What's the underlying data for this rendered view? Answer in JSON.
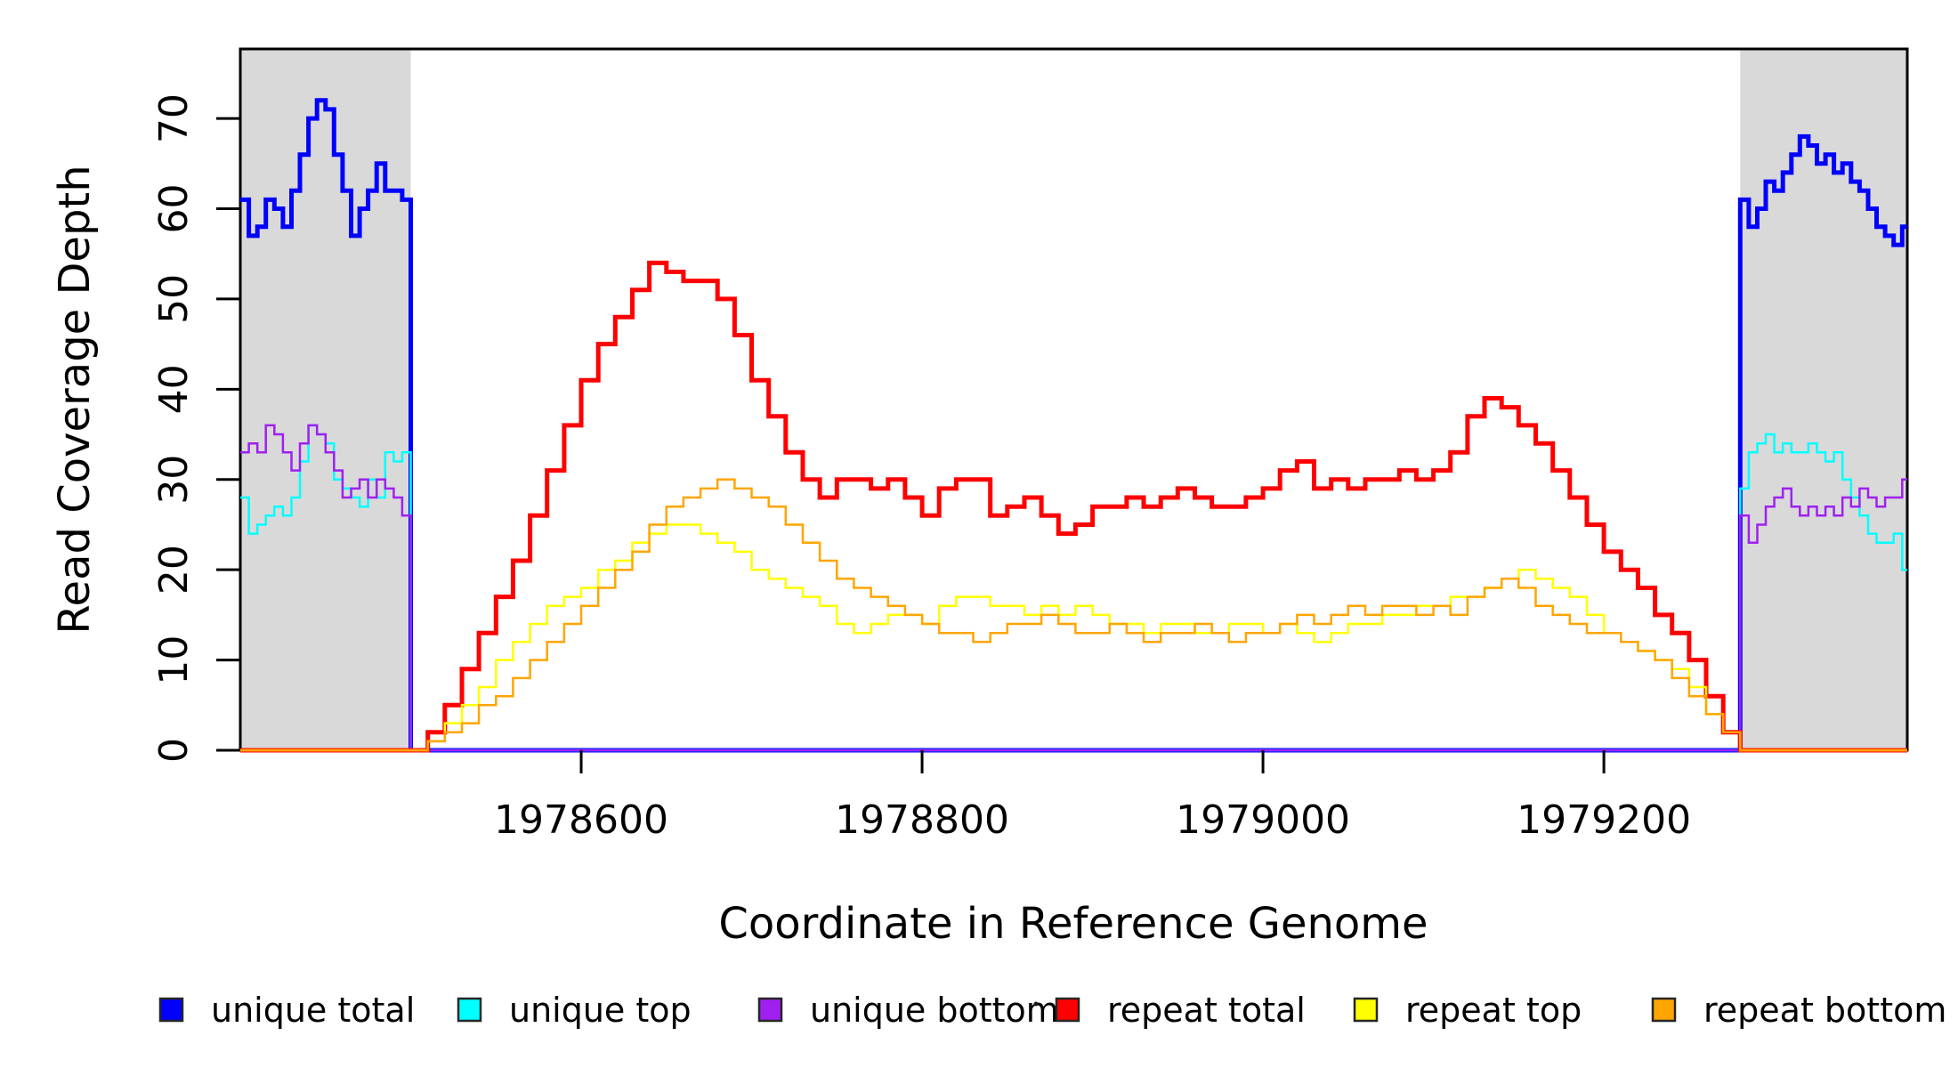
{
  "chart_data": {
    "type": "line",
    "subtype": "step",
    "title": "",
    "xlabel": "Coordinate in Reference Genome",
    "ylabel": "Read Coverage Depth",
    "xlim": [
      1978400,
      1979378
    ],
    "ylim": [
      0,
      77.7
    ],
    "x_ticks": [
      1978600,
      1978800,
      1979000,
      1979200
    ],
    "y_ticks": [
      0,
      10,
      20,
      30,
      40,
      50,
      60,
      70
    ],
    "grid": false,
    "legend_position": "bottom",
    "box_color": "#000000",
    "shade_color": "#D9D9D9",
    "background_shaded_regions": [
      {
        "x1": 1978400,
        "x2": 1978500
      },
      {
        "x1": 1979280,
        "x2": 1979378
      }
    ],
    "series": [
      {
        "name": "unique total",
        "color": "#0000FF",
        "line_width": 5,
        "segments": [
          {
            "x0": 1978400,
            "dx": 5,
            "values": [
              61,
              57,
              58,
              61,
              60,
              58,
              62,
              66,
              70,
              72,
              71,
              66,
              62,
              57,
              60,
              62,
              65,
              62,
              62,
              61
            ]
          },
          {
            "x0": 1978500,
            "dx": 780,
            "values": [
              0,
              0
            ]
          },
          {
            "x0": 1979280,
            "dx": 5,
            "values": [
              61,
              58,
              60,
              63,
              62,
              64,
              66,
              68,
              67,
              65,
              66,
              64,
              65,
              63,
              62,
              60,
              58,
              57,
              56,
              58
            ]
          }
        ]
      },
      {
        "name": "unique top",
        "color": "#00FFFF",
        "line_width": 2.5,
        "segments": [
          {
            "x0": 1978400,
            "dx": 5,
            "values": [
              28,
              24,
              25,
              26,
              27,
              26,
              28,
              32,
              36,
              35,
              34,
              30,
              29,
              28,
              27,
              30,
              28,
              33,
              32,
              33
            ]
          },
          {
            "x0": 1978500,
            "dx": 780,
            "values": [
              0,
              0
            ]
          },
          {
            "x0": 1979280,
            "dx": 5,
            "values": [
              29,
              33,
              34,
              35,
              33,
              34,
              33,
              33,
              34,
              33,
              32,
              33,
              30,
              28,
              26,
              24,
              23,
              23,
              24,
              20
            ]
          }
        ]
      },
      {
        "name": "unique bottom",
        "color": "#A020F0",
        "line_width": 2.5,
        "segments": [
          {
            "x0": 1978400,
            "dx": 5,
            "values": [
              33,
              34,
              33,
              36,
              35,
              33,
              31,
              34,
              36,
              35,
              33,
              31,
              28,
              29,
              30,
              28,
              30,
              29,
              28,
              26
            ]
          },
          {
            "x0": 1978500,
            "dx": 780,
            "values": [
              0,
              0
            ]
          },
          {
            "x0": 1979280,
            "dx": 5,
            "values": [
              26,
              23,
              25,
              27,
              28,
              29,
              27,
              26,
              27,
              26,
              27,
              26,
              28,
              27,
              29,
              28,
              27,
              28,
              28,
              30
            ]
          }
        ]
      },
      {
        "name": "repeat total",
        "color": "#FF0000",
        "line_width": 5,
        "segments": [
          {
            "x0": 1978400,
            "dx": 98,
            "values": [
              0,
              0
            ]
          },
          {
            "x0": 1978500,
            "dx": 10,
            "values": [
              0,
              2,
              5,
              9,
              13,
              17,
              21,
              26,
              31,
              36,
              41,
              45,
              48,
              51,
              54,
              53,
              52,
              52,
              50,
              46,
              41,
              37,
              33,
              30,
              28,
              30,
              30,
              29,
              30,
              28,
              26,
              29,
              30,
              30,
              26,
              27,
              28,
              26,
              24,
              25,
              27,
              27,
              28,
              27,
              28,
              29,
              28,
              27,
              27,
              28,
              29,
              31,
              32,
              29,
              30,
              29,
              30,
              30,
              31,
              30,
              31,
              33,
              37,
              39,
              38,
              36,
              34,
              31,
              28,
              25,
              22,
              20,
              18,
              15,
              13,
              10,
              6,
              2,
              0
            ]
          },
          {
            "x0": 1979280,
            "dx": 98,
            "values": [
              0,
              0
            ]
          }
        ]
      },
      {
        "name": "repeat top",
        "color": "#FFFF00",
        "line_width": 2.5,
        "segments": [
          {
            "x0": 1978400,
            "dx": 98,
            "values": [
              0,
              0
            ]
          },
          {
            "x0": 1978500,
            "dx": 10,
            "values": [
              0,
              1,
              3,
              5,
              7,
              10,
              12,
              14,
              16,
              17,
              18,
              20,
              21,
              23,
              24,
              25,
              25,
              24,
              23,
              22,
              20,
              19,
              18,
              17,
              16,
              14,
              13,
              14,
              15,
              15,
              14,
              16,
              17,
              17,
              16,
              16,
              15,
              16,
              15,
              16,
              15,
              14,
              14,
              13,
              14,
              14,
              13,
              13,
              14,
              14,
              13,
              14,
              13,
              12,
              13,
              14,
              14,
              15,
              15,
              16,
              16,
              17,
              17,
              18,
              19,
              20,
              19,
              18,
              17,
              15,
              13,
              12,
              11,
              10,
              9,
              7,
              4,
              2,
              0
            ]
          },
          {
            "x0": 1979280,
            "dx": 98,
            "values": [
              0,
              0
            ]
          }
        ]
      },
      {
        "name": "repeat bottom",
        "color": "#FFA500",
        "line_width": 2.5,
        "segments": [
          {
            "x0": 1978400,
            "dx": 98,
            "values": [
              0,
              0
            ]
          },
          {
            "x0": 1978500,
            "dx": 10,
            "values": [
              0,
              1,
              2,
              3,
              5,
              6,
              8,
              10,
              12,
              14,
              16,
              18,
              20,
              22,
              25,
              27,
              28,
              29,
              30,
              29,
              28,
              27,
              25,
              23,
              21,
              19,
              18,
              17,
              16,
              15,
              14,
              13,
              13,
              12,
              13,
              14,
              14,
              15,
              14,
              13,
              13,
              14,
              13,
              12,
              13,
              13,
              14,
              13,
              12,
              13,
              13,
              14,
              15,
              14,
              15,
              16,
              15,
              16,
              16,
              15,
              16,
              15,
              17,
              18,
              19,
              18,
              16,
              15,
              14,
              13,
              13,
              12,
              11,
              10,
              8,
              6,
              4,
              2,
              0
            ]
          },
          {
            "x0": 1979280,
            "dx": 98,
            "values": [
              0,
              0
            ]
          }
        ]
      }
    ],
    "legend": [
      {
        "label": "unique total",
        "color": "#0000FF"
      },
      {
        "label": "unique top",
        "color": "#00FFFF"
      },
      {
        "label": "unique bottom",
        "color": "#A020F0"
      },
      {
        "label": "repeat total",
        "color": "#FF0000"
      },
      {
        "label": "repeat top",
        "color": "#FFFF00"
      },
      {
        "label": "repeat bottom",
        "color": "#FFA500"
      }
    ]
  }
}
